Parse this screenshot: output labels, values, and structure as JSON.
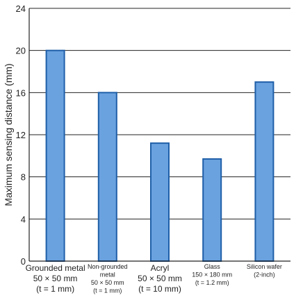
{
  "chart_data": {
    "type": "bar",
    "title": "",
    "xlabel": "",
    "ylabel": "Maximum sensing distance (mm)",
    "ylim": [
      0,
      24
    ],
    "yticks": [
      0,
      4,
      8,
      12,
      16,
      20,
      24
    ],
    "grid": true,
    "bar_color": "#6aa2df",
    "bar_edge_color": "#1f5fa8",
    "categories": [
      {
        "lines": [
          "Grounded metal",
          "50 × 50 mm",
          "(t = 1 mm)"
        ],
        "size": "big"
      },
      {
        "lines": [
          "Non-grounded",
          "metal",
          "50 × 50 mm",
          "(t = 1 mm)"
        ],
        "size": "small"
      },
      {
        "lines": [
          "Acryl",
          "50 × 50 mm",
          "(t = 10 mm)"
        ],
        "size": "big"
      },
      {
        "lines": [
          "Glass",
          "150 × 180 mm",
          "(t = 1.2 mm)"
        ],
        "size": "small"
      },
      {
        "lines": [
          "Silicon wafer",
          "(2-inch)"
        ],
        "size": "small"
      }
    ],
    "values": [
      20,
      16,
      11.2,
      9.7,
      17
    ]
  }
}
